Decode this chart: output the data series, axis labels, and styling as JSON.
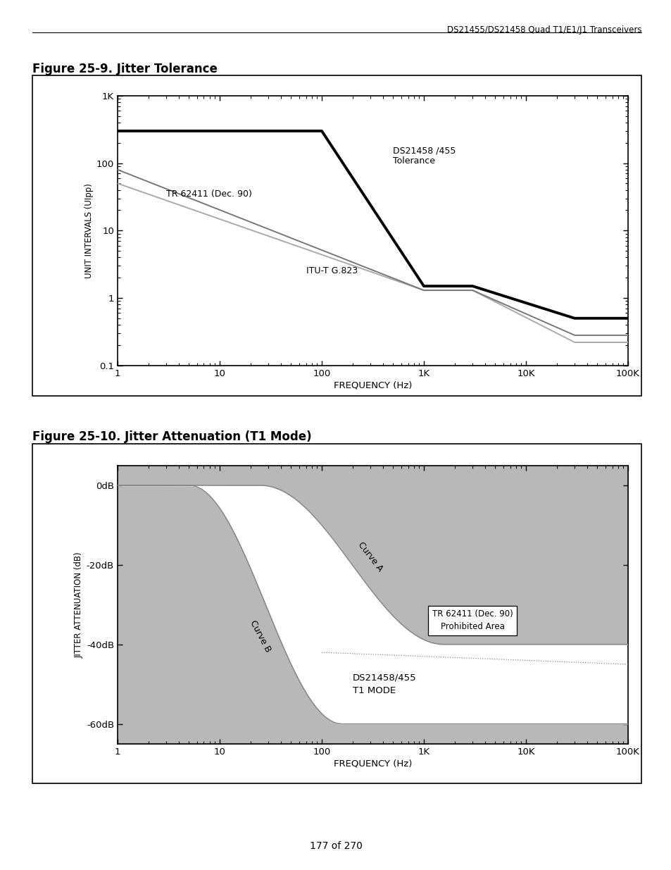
{
  "header_text": "DS21455/DS21458 Quad T1/E1/J1 Transceivers",
  "fig1_title": "Figure 25-9. Jitter Tolerance",
  "fig2_title": "Figure 25-10. Jitter Attenuation (T1 Mode)",
  "footer_text": "177 of 270",
  "fig1": {
    "xlabel": "FREQUENCY (Hz)",
    "ylabel": "UNIT INTERVALS (UIpp)",
    "xticks": [
      1,
      10,
      100,
      1000,
      10000,
      100000
    ],
    "xticklabels": [
      "1",
      "10",
      "100",
      "1K",
      "10K",
      "100K"
    ],
    "yticks": [
      0.1,
      1,
      10,
      100,
      1000
    ],
    "yticklabels": [
      "0.1",
      "1",
      "10",
      "100",
      "1K"
    ],
    "ds_label": "DS21458 /455\nTolerance",
    "tr_label": "TR 62411 (Dec. 90)",
    "itu_label": "ITU-T G.823"
  },
  "fig2": {
    "xlabel": "FREQUENCY (Hz)",
    "ylabel": "JITTER ATTENUATION (dB)",
    "xticks": [
      1,
      10,
      100,
      1000,
      10000,
      100000
    ],
    "xticklabels": [
      "1",
      "10",
      "100",
      "1K",
      "10K",
      "100K"
    ],
    "yticks": [
      -60,
      -40,
      -20,
      0
    ],
    "yticklabels": [
      "-60dB",
      "-40dB",
      "-20dB",
      "0dB"
    ],
    "ds_label": "DS21458/455\nT1 MODE",
    "box_label": "TR 62411 (Dec. 90)\nProhibited Area",
    "curve_a_label": "Curve A",
    "curve_b_label": "Curve B"
  },
  "bg_color": "#ffffff",
  "gray_fill": "#b8b8b8"
}
